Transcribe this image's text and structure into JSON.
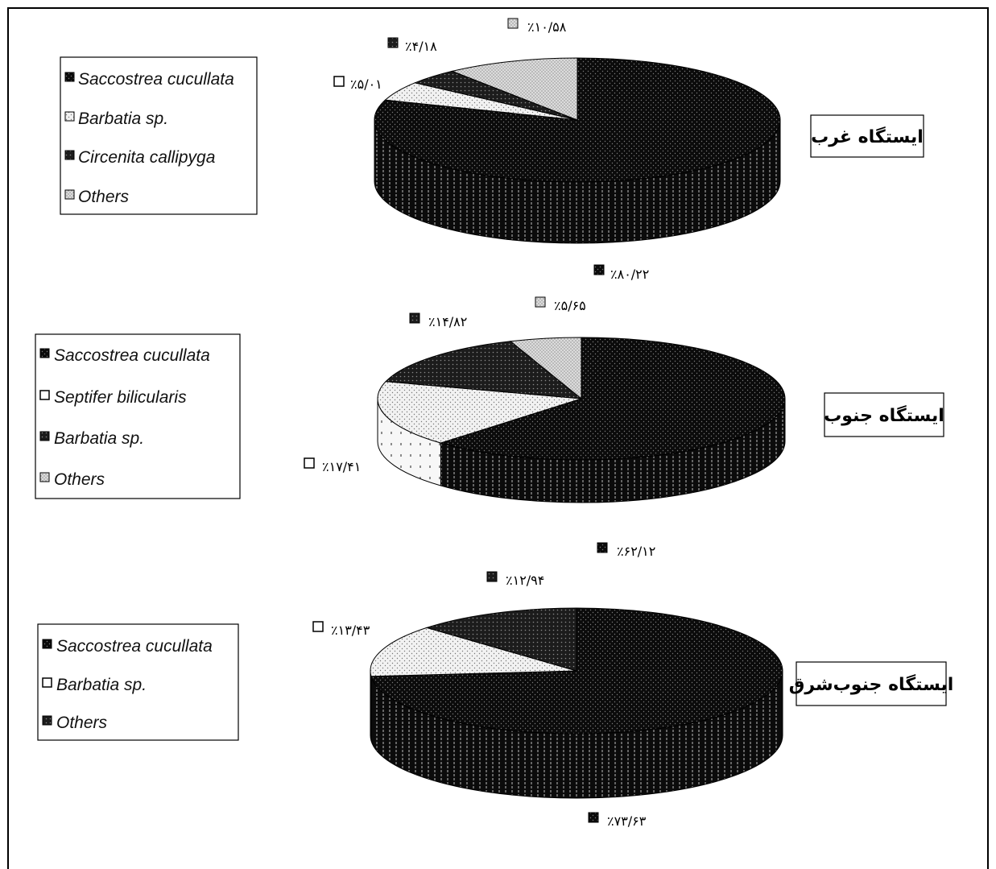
{
  "chart_data": [
    {
      "type": "pie",
      "title": "ایستگاه غرب",
      "categories": [
        "Saccostrea cucullata",
        "Barbatia sp.",
        "Circenita callipyga",
        "Others"
      ],
      "values": [
        80.22,
        5.01,
        4.18,
        10.58
      ],
      "labels": [
        "٪۸۰/۲۲",
        "٪۵/۰۱",
        "٪۴/۱۸",
        "٪۱۰/۵۸"
      ],
      "legend_position": "left",
      "style": "3d"
    },
    {
      "type": "pie",
      "title": "ایستگاه جنوب",
      "categories": [
        "Saccostrea cucullata",
        "Septifer bilicularis",
        "Barbatia sp.",
        "Others"
      ],
      "values": [
        62.12,
        17.41,
        14.82,
        5.65
      ],
      "labels": [
        "٪۶۲/۱۲",
        "٪۱۷/۴۱",
        "٪۱۴/۸۲",
        "٪۵/۶۵"
      ],
      "legend_position": "left",
      "style": "3d"
    },
    {
      "type": "pie",
      "title": "ایستگاه جنوب‌شرق",
      "categories": [
        "Saccostrea cucullata",
        "Barbatia sp.",
        "Others"
      ],
      "values": [
        73.63,
        13.43,
        12.94
      ],
      "labels": [
        "٪۷۳/۶۳",
        "٪۱۳/۴۳",
        "٪۱۲/۹۴"
      ],
      "legend_position": "left",
      "style": "3d"
    }
  ],
  "colors": {
    "saccostrea": "#0b0b0b",
    "light_dotted": "#e8e8e8",
    "medium_dark": "#1c1c1c",
    "others_light": "#d9d9d9",
    "border": "#000000"
  }
}
